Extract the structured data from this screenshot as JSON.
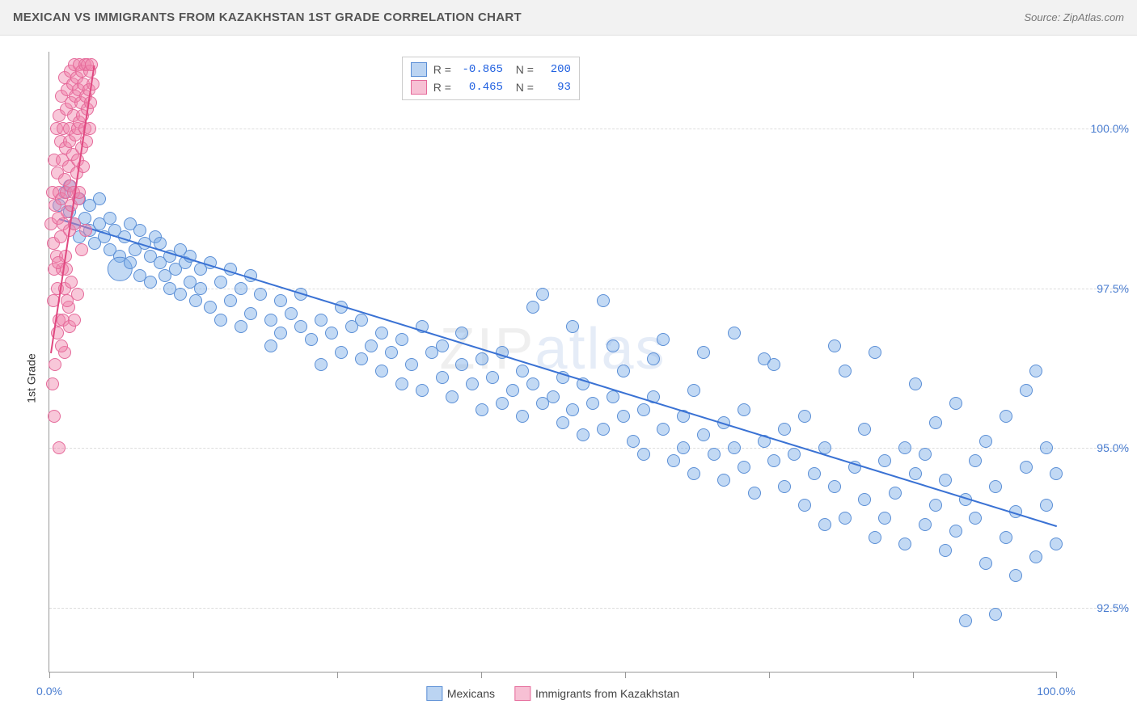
{
  "title": "MEXICAN VS IMMIGRANTS FROM KAZAKHSTAN 1ST GRADE CORRELATION CHART",
  "source": "Source: ZipAtlas.com",
  "ylabel": "1st Grade",
  "watermark": {
    "pre": "ZIP",
    "accent": "atlas"
  },
  "chart": {
    "type": "scatter",
    "background_color": "#ffffff",
    "grid_color": "#dddddd",
    "grid_style": "dashed",
    "axis_color": "#999999",
    "text_color": "#333333",
    "tick_label_color": "#4a7dd0",
    "tick_fontsize": 14,
    "title_fontsize": 15,
    "label_fontsize": 14,
    "xlim": [
      0,
      100
    ],
    "ylim": [
      91.5,
      101.2
    ],
    "xticks": [
      0,
      14.3,
      28.6,
      42.9,
      57.2,
      71.5,
      85.8,
      100
    ],
    "xtick_labels_shown": {
      "0": "0.0%",
      "100": "100.0%"
    },
    "yticks": [
      92.5,
      95.0,
      97.5,
      100.0
    ],
    "ytick_labels": [
      "92.5%",
      "95.0%",
      "97.5%",
      "100.0%"
    ],
    "marker_shape": "circle",
    "marker_radius": 8,
    "marker_fill_opacity": 0.45,
    "marker_border_width": 1,
    "trend_line_width": 2,
    "series": [
      {
        "name": "Mexicans",
        "color": "#78aae6",
        "border_color": "#5b8fd6",
        "R": "-0.865",
        "N": "200",
        "trend": {
          "x1": 1,
          "y1": 98.6,
          "x2": 100,
          "y2": 93.8,
          "color": "#3a72d4"
        },
        "points": [
          [
            1,
            98.8
          ],
          [
            1.5,
            99.0
          ],
          [
            2,
            98.7
          ],
          [
            2,
            99.1
          ],
          [
            2.5,
            98.5
          ],
          [
            3,
            98.9
          ],
          [
            3,
            98.3
          ],
          [
            3.5,
            98.6
          ],
          [
            4,
            98.8
          ],
          [
            4,
            98.4
          ],
          [
            4.5,
            98.2
          ],
          [
            5,
            98.5
          ],
          [
            5,
            98.9
          ],
          [
            5.5,
            98.3
          ],
          [
            6,
            98.1
          ],
          [
            6,
            98.6
          ],
          [
            6.5,
            98.4
          ],
          [
            7,
            98.0
          ],
          [
            7,
            97.8,
            "big"
          ],
          [
            7.5,
            98.3
          ],
          [
            8,
            98.5
          ],
          [
            8,
            97.9
          ],
          [
            8.5,
            98.1
          ],
          [
            9,
            98.4
          ],
          [
            9,
            97.7
          ],
          [
            9.5,
            98.2
          ],
          [
            10,
            98.0
          ],
          [
            10,
            97.6
          ],
          [
            10.5,
            98.3
          ],
          [
            11,
            97.9
          ],
          [
            11,
            98.2
          ],
          [
            11.5,
            97.7
          ],
          [
            12,
            98.0
          ],
          [
            12,
            97.5
          ],
          [
            12.5,
            97.8
          ],
          [
            13,
            98.1
          ],
          [
            13,
            97.4
          ],
          [
            13.5,
            97.9
          ],
          [
            14,
            97.6
          ],
          [
            14,
            98.0
          ],
          [
            14.5,
            97.3
          ],
          [
            15,
            97.8
          ],
          [
            15,
            97.5
          ],
          [
            16,
            97.9
          ],
          [
            16,
            97.2
          ],
          [
            17,
            97.6
          ],
          [
            17,
            97.0
          ],
          [
            18,
            97.8
          ],
          [
            18,
            97.3
          ],
          [
            19,
            97.5
          ],
          [
            19,
            96.9
          ],
          [
            20,
            97.7
          ],
          [
            20,
            97.1
          ],
          [
            21,
            97.4
          ],
          [
            22,
            97.0
          ],
          [
            22,
            96.6
          ],
          [
            23,
            97.3
          ],
          [
            23,
            96.8
          ],
          [
            24,
            97.1
          ],
          [
            25,
            96.9
          ],
          [
            25,
            97.4
          ],
          [
            26,
            96.7
          ],
          [
            27,
            96.3
          ],
          [
            27,
            97.0
          ],
          [
            28,
            96.8
          ],
          [
            29,
            96.5
          ],
          [
            29,
            97.2
          ],
          [
            30,
            96.9
          ],
          [
            31,
            96.4
          ],
          [
            31,
            97.0
          ],
          [
            32,
            96.6
          ],
          [
            33,
            96.2
          ],
          [
            33,
            96.8
          ],
          [
            34,
            96.5
          ],
          [
            35,
            96.0
          ],
          [
            35,
            96.7
          ],
          [
            36,
            96.3
          ],
          [
            37,
            96.9
          ],
          [
            37,
            95.9
          ],
          [
            38,
            96.5
          ],
          [
            39,
            96.1
          ],
          [
            39,
            96.6
          ],
          [
            40,
            95.8
          ],
          [
            41,
            96.3
          ],
          [
            41,
            96.8
          ],
          [
            42,
            96.0
          ],
          [
            43,
            95.6
          ],
          [
            43,
            96.4
          ],
          [
            44,
            96.1
          ],
          [
            45,
            95.7
          ],
          [
            45,
            96.5
          ],
          [
            46,
            95.9
          ],
          [
            47,
            96.2
          ],
          [
            47,
            95.5
          ],
          [
            48,
            96.0
          ],
          [
            49,
            95.7
          ],
          [
            49,
            97.4
          ],
          [
            50,
            95.8
          ],
          [
            51,
            95.4
          ],
          [
            51,
            96.1
          ],
          [
            52,
            95.6
          ],
          [
            53,
            95.2
          ],
          [
            53,
            96.0
          ],
          [
            54,
            95.7
          ],
          [
            55,
            97.3
          ],
          [
            55,
            95.3
          ],
          [
            56,
            95.8
          ],
          [
            57,
            95.5
          ],
          [
            57,
            96.2
          ],
          [
            58,
            95.1
          ],
          [
            59,
            95.6
          ],
          [
            59,
            94.9
          ],
          [
            60,
            95.8
          ],
          [
            61,
            95.3
          ],
          [
            61,
            96.7
          ],
          [
            62,
            94.8
          ],
          [
            63,
            95.5
          ],
          [
            63,
            95.0
          ],
          [
            64,
            94.6
          ],
          [
            65,
            95.2
          ],
          [
            65,
            96.5
          ],
          [
            66,
            94.9
          ],
          [
            67,
            95.4
          ],
          [
            67,
            94.5
          ],
          [
            68,
            95.0
          ],
          [
            69,
            95.6
          ],
          [
            69,
            94.7
          ],
          [
            70,
            94.3
          ],
          [
            71,
            95.1
          ],
          [
            71,
            96.4
          ],
          [
            72,
            94.8
          ],
          [
            73,
            94.4
          ],
          [
            73,
            95.3
          ],
          [
            74,
            94.9
          ],
          [
            75,
            94.1
          ],
          [
            75,
            95.5
          ],
          [
            76,
            94.6
          ],
          [
            77,
            93.8
          ],
          [
            77,
            95.0
          ],
          [
            78,
            94.4
          ],
          [
            79,
            96.2
          ],
          [
            79,
            93.9
          ],
          [
            80,
            94.7
          ],
          [
            81,
            94.2
          ],
          [
            81,
            95.3
          ],
          [
            82,
            93.6
          ],
          [
            82,
            96.5
          ],
          [
            83,
            94.8
          ],
          [
            83,
            93.9
          ],
          [
            84,
            94.3
          ],
          [
            85,
            95.0
          ],
          [
            85,
            93.5
          ],
          [
            86,
            94.6
          ],
          [
            86,
            96.0
          ],
          [
            87,
            93.8
          ],
          [
            87,
            94.9
          ],
          [
            88,
            94.1
          ],
          [
            88,
            95.4
          ],
          [
            89,
            93.4
          ],
          [
            89,
            94.5
          ],
          [
            90,
            95.7
          ],
          [
            90,
            93.7
          ],
          [
            91,
            94.2
          ],
          [
            91,
            92.3
          ],
          [
            92,
            94.8
          ],
          [
            92,
            93.9
          ],
          [
            93,
            95.1
          ],
          [
            93,
            93.2
          ],
          [
            94,
            94.4
          ],
          [
            94,
            92.4
          ],
          [
            95,
            95.5
          ],
          [
            95,
            93.6
          ],
          [
            96,
            94.0
          ],
          [
            96,
            93.0
          ],
          [
            97,
            94.7
          ],
          [
            97,
            95.9
          ],
          [
            98,
            93.3
          ],
          [
            98,
            96.2
          ],
          [
            99,
            94.1
          ],
          [
            99,
            95.0
          ],
          [
            100,
            93.5
          ],
          [
            100,
            94.6
          ],
          [
            78,
            96.6
          ],
          [
            72,
            96.3
          ],
          [
            68,
            96.8
          ],
          [
            64,
            95.9
          ],
          [
            60,
            96.4
          ],
          [
            56,
            96.6
          ],
          [
            52,
            96.9
          ],
          [
            48,
            97.2
          ]
        ]
      },
      {
        "name": "Immigrants from Kazakhstan",
        "color": "#f082aa",
        "border_color": "#e56a9a",
        "R": "0.465",
        "N": "93",
        "trend": {
          "x1": 0.2,
          "y1": 96.5,
          "x2": 4.5,
          "y2": 101.0,
          "color": "#e04880"
        },
        "points": [
          [
            0.2,
            98.5
          ],
          [
            0.3,
            99.0
          ],
          [
            0.4,
            98.2
          ],
          [
            0.5,
            99.5
          ],
          [
            0.5,
            97.8
          ],
          [
            0.6,
            98.8
          ],
          [
            0.7,
            100.0
          ],
          [
            0.7,
            98.0
          ],
          [
            0.8,
            99.3
          ],
          [
            0.8,
            97.5
          ],
          [
            0.9,
            98.6
          ],
          [
            1.0,
            100.2
          ],
          [
            1.0,
            99.0
          ],
          [
            1.0,
            97.0
          ],
          [
            1.1,
            98.3
          ],
          [
            1.1,
            99.8
          ],
          [
            1.2,
            100.5
          ],
          [
            1.2,
            98.9
          ],
          [
            1.3,
            99.5
          ],
          [
            1.3,
            97.8
          ],
          [
            1.4,
            100.0
          ],
          [
            1.4,
            98.5
          ],
          [
            1.5,
            99.2
          ],
          [
            1.5,
            100.8
          ],
          [
            1.5,
            96.5
          ],
          [
            1.6,
            99.7
          ],
          [
            1.6,
            98.0
          ],
          [
            1.7,
            100.3
          ],
          [
            1.7,
            99.0
          ],
          [
            1.8,
            98.7
          ],
          [
            1.8,
            100.6
          ],
          [
            1.9,
            99.4
          ],
          [
            1.9,
            97.2
          ],
          [
            2.0,
            100.0
          ],
          [
            2.0,
            99.8
          ],
          [
            2.0,
            98.4
          ],
          [
            2.1,
            100.9
          ],
          [
            2.1,
            99.1
          ],
          [
            2.2,
            100.4
          ],
          [
            2.2,
            98.8
          ],
          [
            2.3,
            99.6
          ],
          [
            2.3,
            100.7
          ],
          [
            2.4,
            99.0
          ],
          [
            2.4,
            100.2
          ],
          [
            2.5,
            98.5
          ],
          [
            2.5,
            101.0
          ],
          [
            2.6,
            99.9
          ],
          [
            2.6,
            100.5
          ],
          [
            2.7,
            99.3
          ],
          [
            2.7,
            100.8
          ],
          [
            2.8,
            100.0
          ],
          [
            2.8,
            99.5
          ],
          [
            2.9,
            100.6
          ],
          [
            2.9,
            98.9
          ],
          [
            3.0,
            101.0
          ],
          [
            3.0,
            100.1
          ],
          [
            3.0,
            99.0
          ],
          [
            3.1,
            100.4
          ],
          [
            3.2,
            99.7
          ],
          [
            3.2,
            100.9
          ],
          [
            3.3,
            100.2
          ],
          [
            3.4,
            99.4
          ],
          [
            3.4,
            100.7
          ],
          [
            3.5,
            100.0
          ],
          [
            3.5,
            101.0
          ],
          [
            3.6,
            100.5
          ],
          [
            3.7,
            99.8
          ],
          [
            3.8,
            100.3
          ],
          [
            3.8,
            101.0
          ],
          [
            3.9,
            100.6
          ],
          [
            4.0,
            100.0
          ],
          [
            4.0,
            100.9
          ],
          [
            4.1,
            100.4
          ],
          [
            4.2,
            101.0
          ],
          [
            4.3,
            100.7
          ],
          [
            0.3,
            96.0
          ],
          [
            0.5,
            95.5
          ],
          [
            0.8,
            96.8
          ],
          [
            1.0,
            95.0
          ],
          [
            1.5,
            97.5
          ],
          [
            1.4,
            97.0
          ],
          [
            1.8,
            97.3
          ],
          [
            2.0,
            96.9
          ],
          [
            2.2,
            97.6
          ],
          [
            2.5,
            97.0
          ],
          [
            0.4,
            97.3
          ],
          [
            0.6,
            96.3
          ],
          [
            0.9,
            97.9
          ],
          [
            1.2,
            96.6
          ],
          [
            1.7,
            97.8
          ],
          [
            2.8,
            97.4
          ],
          [
            3.2,
            98.1
          ],
          [
            3.6,
            98.4
          ]
        ]
      }
    ]
  },
  "legend_bottom": [
    {
      "swatch": "blue",
      "label": "Mexicans"
    },
    {
      "swatch": "pink",
      "label": "Immigrants from Kazakhstan"
    }
  ]
}
